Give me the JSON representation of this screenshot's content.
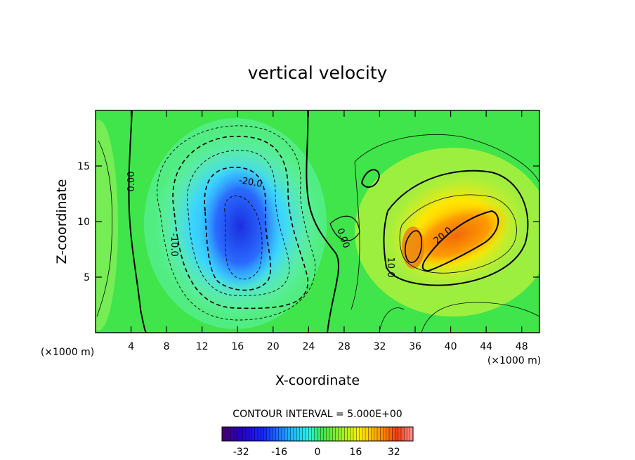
{
  "chart_data": {
    "type": "contour",
    "title": "vertical velocity",
    "xlabel": "X-coordinate",
    "ylabel": "Z-coordinate",
    "x_units": "(×1000 m)",
    "z_units": "(×1000 m)",
    "xlim": [
      0,
      50
    ],
    "ylim": [
      0,
      20
    ],
    "x_ticks": [
      4,
      8,
      12,
      16,
      20,
      24,
      28,
      32,
      36,
      40,
      44,
      48
    ],
    "y_ticks": [
      5,
      10,
      15
    ],
    "contour_interval_label": "CONTOUR INTERVAL = 5.000E+00",
    "contour_interval": 5,
    "contour_labels": [
      "0.00",
      "-10.0",
      "-20.0",
      "0.00",
      "10.0",
      "20.0"
    ],
    "features": [
      {
        "name": "downdraft",
        "center_x": 16,
        "center_z": 9,
        "min_value": -30
      },
      {
        "name": "updraft",
        "center_x": 41,
        "center_z": 9,
        "max_value": 30
      }
    ],
    "colorbar": {
      "range": [
        -40,
        40
      ],
      "tick_labels": [
        "-32",
        "-16",
        "0",
        "16",
        "32"
      ],
      "tick_values": [
        -32,
        -16,
        0,
        16,
        32
      ]
    }
  }
}
